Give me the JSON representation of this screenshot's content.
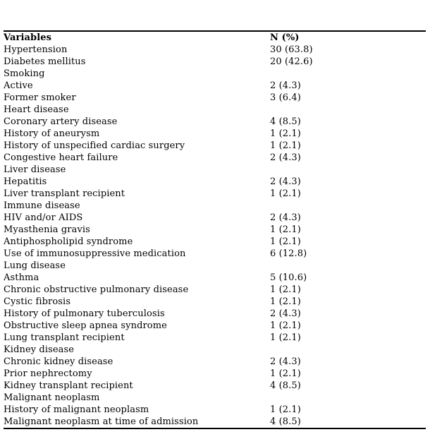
{
  "page": {
    "background": "#ffffff",
    "text_color": "#000000",
    "rule_color": "#000000"
  },
  "table": {
    "columns": [
      "Variables",
      "N (%)"
    ],
    "rows": [
      {
        "label": "Hypertension",
        "value": "30 (63.8)",
        "section": false
      },
      {
        "label": "Diabetes mellitus",
        "value": "20 (42.6)",
        "section": false
      },
      {
        "label": "Smoking",
        "value": "",
        "section": true
      },
      {
        "label": "Active",
        "value": "2 (4.3)",
        "section": false
      },
      {
        "label": "Former smoker",
        "value": "3 (6.4)",
        "section": false
      },
      {
        "label": "Heart disease",
        "value": "",
        "section": true
      },
      {
        "label": "Coronary artery disease",
        "value": "4 (8.5)",
        "section": false
      },
      {
        "label": "History of aneurysm",
        "value": "1 (2.1)",
        "section": false
      },
      {
        "label": "History of unspecified cardiac surgery",
        "value": "1 (2.1)",
        "section": false
      },
      {
        "label": "Congestive heart failure",
        "value": "2 (4.3)",
        "section": false
      },
      {
        "label": "Liver disease",
        "value": "",
        "section": true
      },
      {
        "label": "Hepatitis",
        "value": "2 (4.3)",
        "section": false
      },
      {
        "label": "Liver transplant recipient",
        "value": "1 (2.1)",
        "section": false
      },
      {
        "label": "Immune disease",
        "value": "",
        "section": true
      },
      {
        "label": "HIV and/or AIDS",
        "value": "2 (4.3)",
        "section": false
      },
      {
        "label": "Myasthenia gravis",
        "value": "1 (2.1)",
        "section": false
      },
      {
        "label": "Antiphospholipid syndrome",
        "value": "1 (2.1)",
        "section": false
      },
      {
        "label": "Use of immunosuppressive medication",
        "value": "6 (12.8)",
        "section": false
      },
      {
        "label": "Lung disease",
        "value": "",
        "section": true
      },
      {
        "label": "Asthma",
        "value": "5 (10.6)",
        "section": false
      },
      {
        "label": "Chronic obstructive pulmonary disease",
        "value": "1 (2.1)",
        "section": false
      },
      {
        "label": "Cystic fibrosis",
        "value": "1 (2.1)",
        "section": false
      },
      {
        "label": "History of pulmonary tuberculosis",
        "value": "2 (4.3)",
        "section": false
      },
      {
        "label": "Obstructive sleep apnea syndrome",
        "value": "1 (2.1)",
        "section": false
      },
      {
        "label": "Lung transplant recipient",
        "value": "1 (2.1)",
        "section": false
      },
      {
        "label": "Kidney disease",
        "value": "",
        "section": true
      },
      {
        "label": "Chronic kidney disease",
        "value": "2 (4.3)",
        "section": false
      },
      {
        "label": "Prior nephrectomy",
        "value": "1 (2.1)",
        "section": false
      },
      {
        "label": "Kidney transplant recipient",
        "value": "4 (8.5)",
        "section": false
      },
      {
        "label": "Malignant neoplasm",
        "value": "",
        "section": true
      },
      {
        "label": "History of malignant neoplasm",
        "value": "1 (2.1)",
        "section": false
      },
      {
        "label": "Malignant neoplasm at time of admission",
        "value": "4 (8.5)",
        "section": false
      }
    ]
  }
}
